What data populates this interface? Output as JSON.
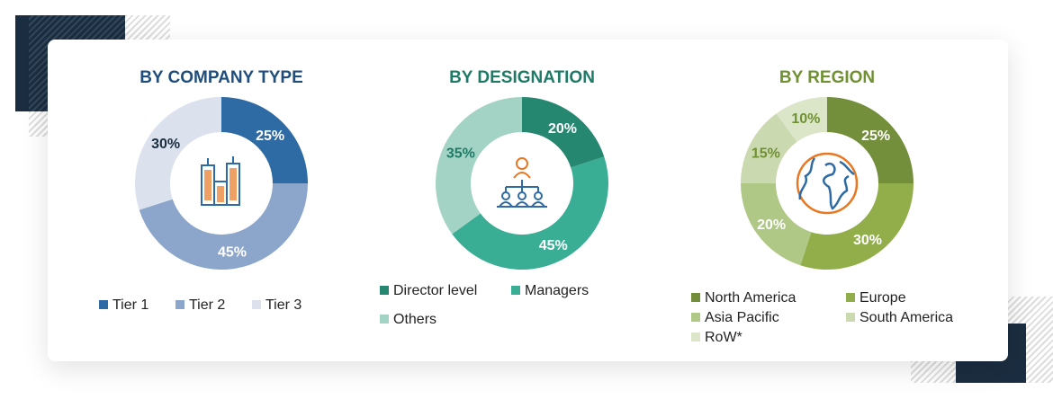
{
  "chart_data": [
    {
      "type": "pie",
      "title": "BY COMPANY TYPE",
      "title_color": "#1f4e7d",
      "icon": "office-buildings-icon",
      "categories": [
        "Tier 1",
        "Tier 2",
        "Tier 3"
      ],
      "values": [
        25,
        45,
        30
      ],
      "labels": [
        "25%",
        "45%",
        "30%"
      ],
      "colors": [
        "#2e6aa3",
        "#8ca5cb",
        "#dbe2ed"
      ],
      "label_colors": [
        "#fff",
        "#fff",
        "#1b2d40"
      ],
      "legend": "bottom"
    },
    {
      "type": "pie",
      "title": "BY DESIGNATION",
      "title_color": "#1e7a66",
      "icon": "team-hierarchy-icon",
      "categories": [
        "Director level",
        "Managers",
        "Others"
      ],
      "values": [
        20,
        45,
        35
      ],
      "labels": [
        "20%",
        "45%",
        "35%"
      ],
      "colors": [
        "#25876f",
        "#3aae94",
        "#a3d3c4"
      ],
      "label_colors": [
        "#fff",
        "#fff",
        "#1e7a66"
      ],
      "legend": "bottom"
    },
    {
      "type": "pie",
      "title": "BY REGION",
      "title_color": "#6f9132",
      "icon": "globe-icon",
      "categories": [
        "North America",
        "Europe",
        "Asia Pacific",
        "South America",
        "RoW*"
      ],
      "values": [
        25,
        30,
        20,
        15,
        10
      ],
      "labels": [
        "25%",
        "30%",
        "20%",
        "15%",
        "10%"
      ],
      "colors": [
        "#748f3b",
        "#92ae4b",
        "#b0c886",
        "#cbd9b0",
        "#dbe5c8"
      ],
      "label_colors": [
        "#fff",
        "#fff",
        "#fff",
        "#6f9132",
        "#6f9132"
      ],
      "legend": "bottom"
    }
  ]
}
